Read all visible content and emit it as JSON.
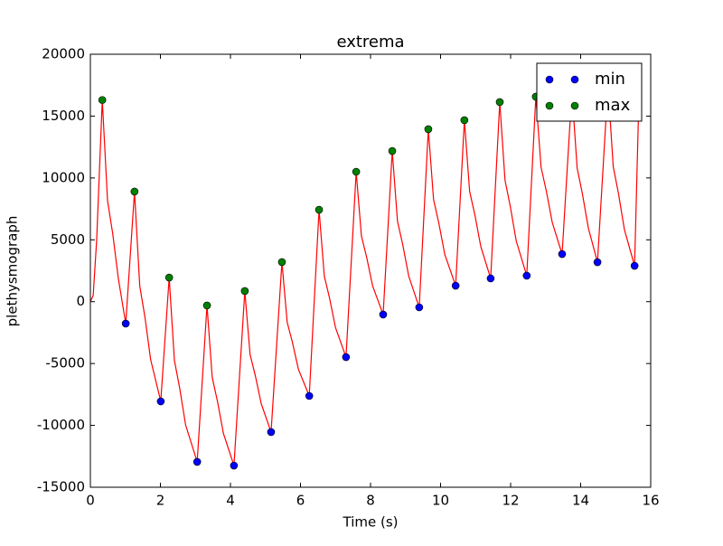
{
  "chart_data": {
    "type": "line",
    "title": "extrema",
    "xlabel": "Time (s)",
    "ylabel": "plethysmograph",
    "xlim": [
      0,
      16
    ],
    "ylim": [
      -15000,
      20000
    ],
    "xticks": [
      0,
      2,
      4,
      6,
      8,
      10,
      12,
      14,
      16
    ],
    "yticks": [
      -15000,
      -10000,
      -5000,
      0,
      5000,
      10000,
      15000,
      20000
    ],
    "legend": "upper right",
    "series": [
      {
        "color": "#ff0000",
        "style": "line",
        "x": [
          0,
          0.08,
          0.18,
          0.34,
          0.49,
          0.64,
          0.8,
          1.01,
          1.26,
          1.41,
          1.56,
          1.72,
          2.01,
          2.25,
          2.4,
          2.55,
          2.72,
          3.05,
          3.33,
          3.48,
          3.63,
          3.8,
          4.1,
          4.41,
          4.56,
          4.71,
          4.88,
          5.16,
          5.47,
          5.62,
          5.77,
          5.94,
          6.25,
          6.53,
          6.68,
          6.83,
          7.0,
          7.3,
          7.59,
          7.74,
          7.89,
          8.06,
          8.36,
          8.62,
          8.77,
          8.92,
          9.09,
          9.39,
          9.65,
          9.8,
          9.95,
          10.12,
          10.43,
          10.68,
          10.83,
          10.98,
          11.15,
          11.43,
          11.69,
          11.84,
          11.99,
          12.16,
          12.46,
          12.72,
          12.87,
          13.02,
          13.19,
          13.47,
          13.75,
          13.9,
          14.05,
          14.22,
          14.48,
          14.78,
          14.93,
          15.08,
          15.25,
          15.54,
          15.65
        ],
        "values": [
          0,
          500,
          5000,
          16300,
          8170,
          5460,
          1840,
          -1770,
          8900,
          1270,
          -1280,
          -4670,
          -8060,
          1950,
          -4755,
          -6990,
          -9970,
          -12950,
          -310,
          -6130,
          -8070,
          -10660,
          -13250,
          860,
          -4270,
          -5980,
          -8260,
          -10540,
          3200,
          -1670,
          -3290,
          -5460,
          -7620,
          7430,
          2070,
          280,
          -2100,
          -4480,
          10500,
          5310,
          3580,
          1270,
          -1040,
          12180,
          6490,
          4600,
          2070,
          -460,
          13940,
          8250,
          6350,
          3820,
          1290,
          14670,
          8910,
          7000,
          4440,
          1880,
          16130,
          9820,
          7710,
          4910,
          2100,
          16570,
          10850,
          8940,
          6390,
          3850,
          17000,
          10790,
          8710,
          5950,
          3190,
          17500,
          10930,
          8740,
          5820,
          2900,
          15000
        ]
      },
      {
        "name": "min",
        "color": "#0000ff",
        "style": "marker",
        "x": [
          1.01,
          2.01,
          3.05,
          4.1,
          5.16,
          6.25,
          7.3,
          8.36,
          9.39,
          10.43,
          11.43,
          12.46,
          13.47,
          14.48,
          15.54
        ],
        "values": [
          -1770,
          -8060,
          -12950,
          -13250,
          -10540,
          -7620,
          -4480,
          -1040,
          -460,
          1290,
          1880,
          2100,
          3850,
          3190,
          2900
        ]
      },
      {
        "name": "max",
        "color": "#008000",
        "style": "marker",
        "x": [
          0.34,
          1.26,
          2.25,
          3.33,
          4.41,
          5.47,
          6.53,
          7.59,
          8.62,
          9.65,
          10.68,
          11.69,
          12.72,
          13.75,
          14.78
        ],
        "values": [
          16300,
          8900,
          1950,
          -310,
          860,
          3200,
          7430,
          10500,
          12180,
          13940,
          14670,
          16130,
          16570,
          17000,
          17500
        ]
      }
    ]
  }
}
